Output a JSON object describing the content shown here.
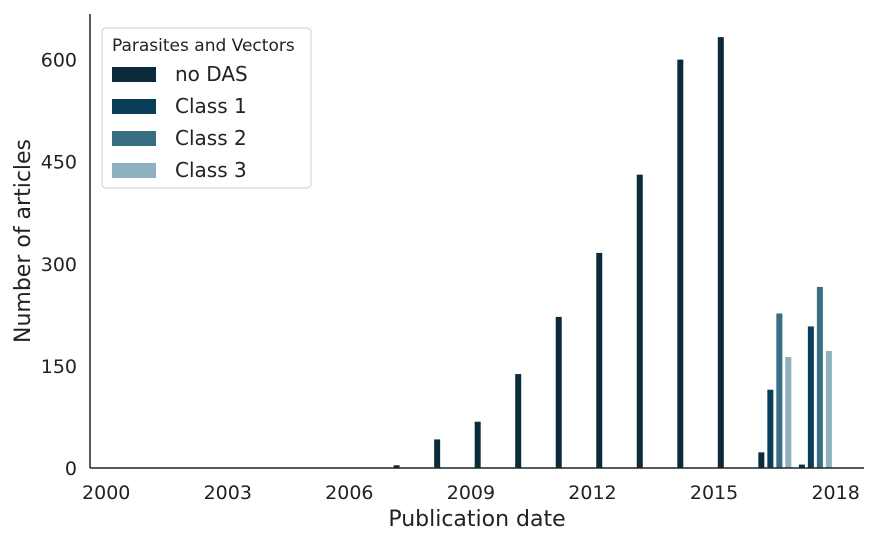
{
  "chart_data": {
    "type": "bar",
    "xlabel": "Publication date",
    "ylabel": "Number of articles",
    "ylim": [
      0,
      667
    ],
    "yticks": [
      0,
      150,
      300,
      450,
      600
    ],
    "xlim": [
      1999.6,
      2018.7
    ],
    "xticks": [
      2000,
      2003,
      2006,
      2009,
      2012,
      2015,
      2018
    ],
    "grid": false,
    "legend": {
      "title": "Parasites and Vectors",
      "placement": "top-left"
    },
    "categories": [
      2000,
      2001,
      2002,
      2003,
      2004,
      2005,
      2006,
      2007,
      2008,
      2009,
      2010,
      2011,
      2012,
      2013,
      2014,
      2015,
      2016,
      2017
    ],
    "series": [
      {
        "name": "no DAS",
        "color": "#0b2a3a",
        "values": [
          0,
          0,
          0,
          0,
          0,
          0,
          0,
          4,
          42,
          68,
          138,
          222,
          316,
          431,
          600,
          633,
          23,
          5
        ]
      },
      {
        "name": "Class 1",
        "color": "#0a3d5a",
        "values": [
          0,
          0,
          0,
          0,
          0,
          0,
          0,
          0,
          0,
          0,
          0,
          0,
          0,
          0,
          0,
          0,
          115,
          208
        ]
      },
      {
        "name": "Class 2",
        "color": "#376e84",
        "values": [
          0,
          0,
          0,
          0,
          0,
          0,
          0,
          0,
          0,
          0,
          0,
          0,
          0,
          0,
          0,
          0,
          227,
          266
        ]
      },
      {
        "name": "Class 3",
        "color": "#8fb1bf",
        "values": [
          0,
          0,
          0,
          0,
          0,
          0,
          0,
          0,
          0,
          0,
          0,
          0,
          0,
          0,
          0,
          0,
          163,
          172
        ]
      }
    ]
  }
}
